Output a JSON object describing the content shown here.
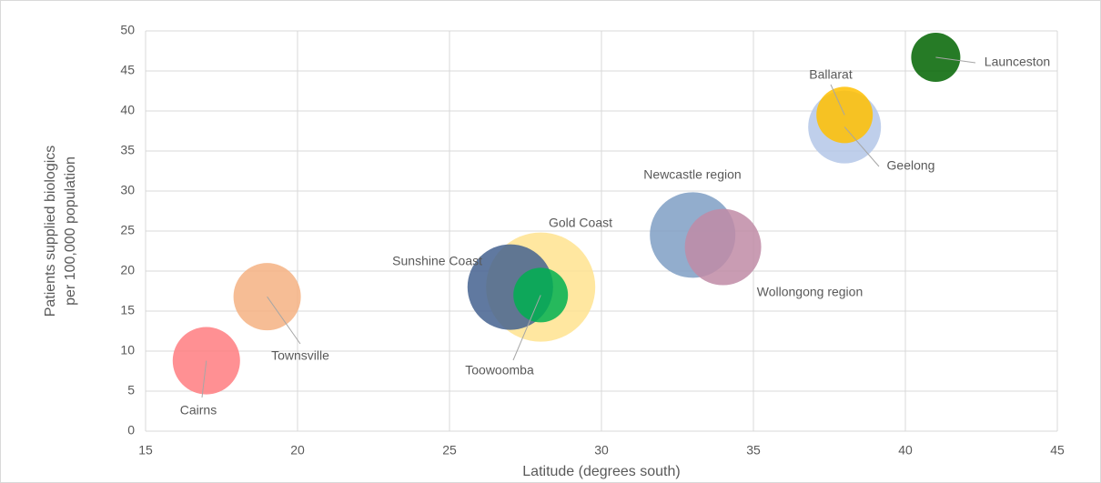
{
  "chart_data": {
    "type": "bubble",
    "xlabel": "Latitude (degrees south)",
    "ylabel": [
      "Patients supplied biologics",
      "per 100,000 population"
    ],
    "labels": [
      "Cairns",
      "Townsville",
      "Gold Coast",
      "Sunshine Coast",
      "Toowoomba",
      "Newcastle region",
      "Wollongong region",
      "Geelong",
      "Ballarat",
      "Launceston"
    ],
    "x": [
      17,
      19,
      28,
      27,
      28,
      33,
      34,
      38,
      38,
      41
    ],
    "values": [
      8.8,
      16.8,
      18,
      18,
      17,
      24.5,
      23,
      38,
      39.5,
      46.7
    ],
    "sizes": [
      137,
      137,
      360,
      221,
      90,
      221,
      176,
      160,
      96,
      73
    ],
    "colors": [
      "#ff7c80",
      "#f4b183",
      "#ffe38f",
      "#44618f",
      "#00b050",
      "#7f9fc4",
      "#c08ba6",
      "#b4c7e7",
      "#ffc000",
      "#006400"
    ],
    "xlim": [
      15,
      45
    ],
    "xticks": [
      15,
      20,
      25,
      30,
      35,
      40,
      45
    ],
    "ylim": [
      0,
      50
    ],
    "yticks": [
      0,
      5,
      10,
      15,
      20,
      25,
      30,
      35,
      40,
      45,
      50
    ],
    "grid": true
  }
}
